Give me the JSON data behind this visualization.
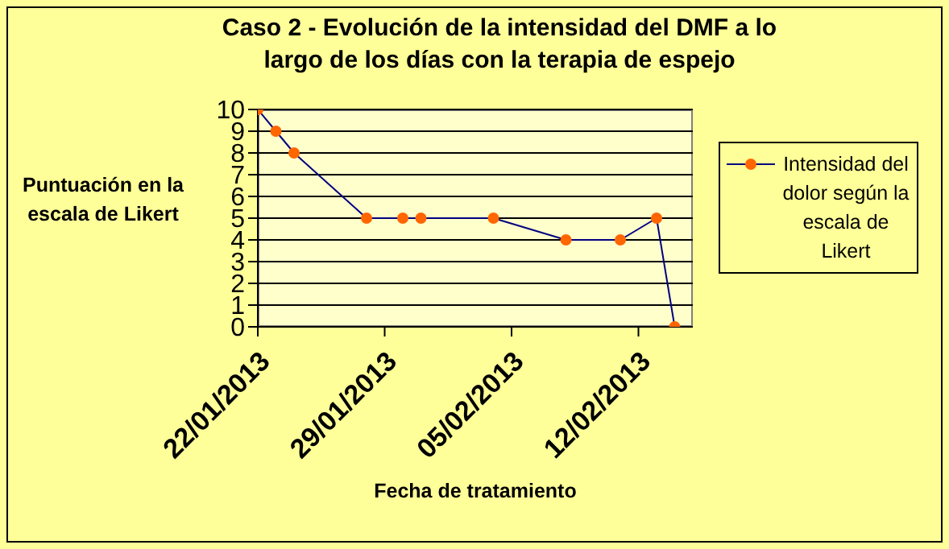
{
  "chart_data": {
    "type": "line",
    "title": "Caso 2 - Evolución de la intensidad del DMF a lo largo de los días con la terapia de espejo",
    "xlabel": "Fecha de tratamiento",
    "ylabel": "Puntuación en la escala de Likert",
    "x": [
      "2013-01-22",
      "2013-01-23",
      "2013-01-24",
      "2013-01-28",
      "2013-01-30",
      "2013-01-31",
      "2013-02-04",
      "2013-02-08",
      "2013-02-11",
      "2013-02-13",
      "2013-02-14"
    ],
    "series": [
      {
        "name": "Intensidad del dolor según la escala de Likert",
        "color": "#000080",
        "values": [
          10,
          9,
          8,
          5,
          5,
          5,
          5,
          4,
          4,
          5,
          0
        ],
        "colors": [
          "#ff6600",
          "#ff6600",
          "#ff6600",
          "#ff6600",
          "#ff6600",
          "#ff6600",
          "#ff6600",
          "#ff6600",
          "#ff6600",
          "#ff6600",
          "#ff6600"
        ]
      }
    ],
    "xlim": [
      "2013-01-22",
      "2013-02-15"
    ],
    "xticks": [
      {
        "value": "2013-01-22",
        "label": "22/01/2013"
      },
      {
        "value": "2013-01-29",
        "label": "29/01/2013"
      },
      {
        "value": "2013-02-05",
        "label": "05/02/2013"
      },
      {
        "value": "2013-02-12",
        "label": "12/02/2013"
      }
    ],
    "ylim": [
      0,
      10
    ],
    "yticks": [
      0,
      1,
      2,
      3,
      4,
      5,
      6,
      7,
      8,
      9,
      10
    ],
    "grid": "y",
    "legend": "right",
    "marker": "circle",
    "line_style": "solid"
  }
}
